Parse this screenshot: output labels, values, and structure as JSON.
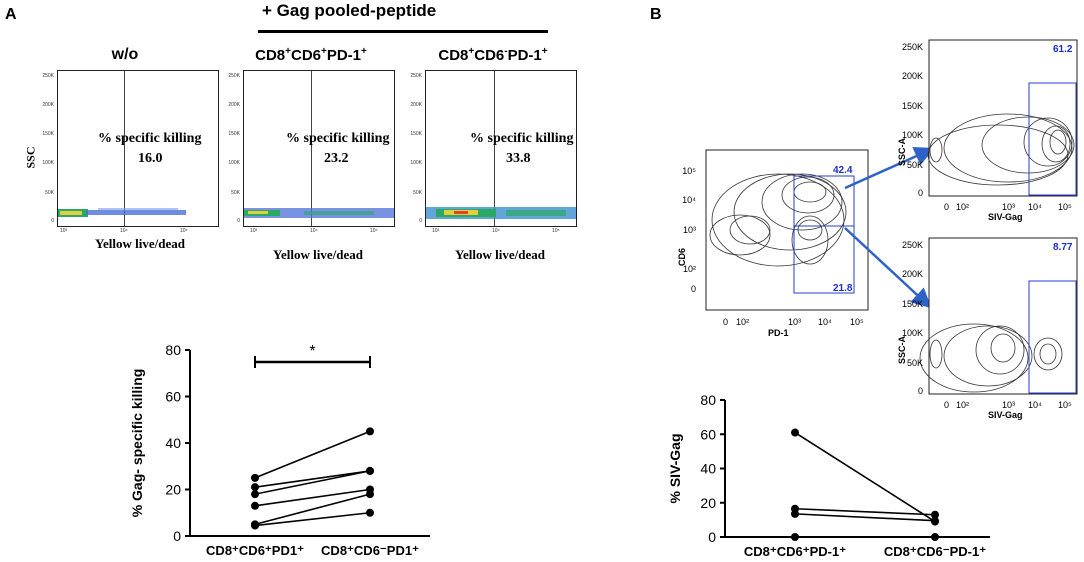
{
  "panel_a": {
    "letter": "A",
    "header": "+ Gag pooled-peptide",
    "y_axis_label": "SSC",
    "x_axis_label": "Yellow live/dead",
    "gate_text": "% specific killing",
    "y_ticks": [
      "250K",
      "200K",
      "150K",
      "100K",
      "50K",
      "0"
    ],
    "x_ticks": [
      "10³",
      "10⁴",
      "10⁵"
    ],
    "plots": [
      {
        "title": "w/o",
        "value": "16.0"
      },
      {
        "title_parts": [
          "CD8",
          "+",
          "CD6",
          "+",
          "PD-1",
          "+"
        ],
        "value": "23.2"
      },
      {
        "title_parts": [
          "CD8",
          "+",
          "CD6",
          "-",
          "PD-1",
          "+"
        ],
        "value": "33.8"
      }
    ]
  },
  "panel_b": {
    "letter": "B",
    "cd6_plot": {
      "y_label": "CD6",
      "x_label": "PD-1",
      "upper_gate_value": "42.4",
      "lower_gate_value": "21.8",
      "y_ticks": [
        "10⁵",
        "10⁴",
        "10³",
        "10²",
        "0"
      ],
      "x_ticks": [
        "0",
        "10²",
        "10³",
        "10⁴",
        "10⁵"
      ]
    },
    "siv_plots": [
      {
        "gate_value": "61.2"
      },
      {
        "gate_value": "8.77"
      }
    ],
    "siv_y_label": "SSC-A",
    "siv_x_label": "SIV-Gag",
    "siv_y_ticks": [
      "250K",
      "200K",
      "150K",
      "100K",
      "50K",
      "0"
    ],
    "siv_x_ticks": [
      "0",
      "10²",
      "10³",
      "10⁴",
      "10⁵"
    ],
    "accent_color": "#2f62c8"
  },
  "chart_data": [
    {
      "type": "scatter",
      "title": "",
      "ylabel": "% Gag- specific killing",
      "xlabel": "",
      "categories": [
        "CD8⁺CD6⁺PD1⁺",
        "CD8⁺CD6⁻PD1⁺"
      ],
      "ylim": [
        0,
        80
      ],
      "yticks": [
        "0",
        "20",
        "40",
        "60",
        "80"
      ],
      "significance": "*",
      "paired_values": [
        [
          25,
          45
        ],
        [
          21,
          28
        ],
        [
          18,
          28
        ],
        [
          13,
          20
        ],
        [
          5,
          18
        ],
        [
          4.5,
          10
        ]
      ]
    },
    {
      "type": "scatter",
      "title": "",
      "ylabel": "% SIV-Gag",
      "xlabel": "",
      "categories": [
        "CD8⁺CD6⁺PD-1⁺",
        "CD8⁺CD6⁻PD-1⁺"
      ],
      "ylim": [
        0,
        80
      ],
      "yticks": [
        "0",
        "20",
        "40",
        "60",
        "80"
      ],
      "paired_values": [
        [
          61,
          9
        ],
        [
          16.5,
          13
        ],
        [
          13.5,
          9.5
        ],
        [
          0,
          0
        ]
      ]
    }
  ]
}
